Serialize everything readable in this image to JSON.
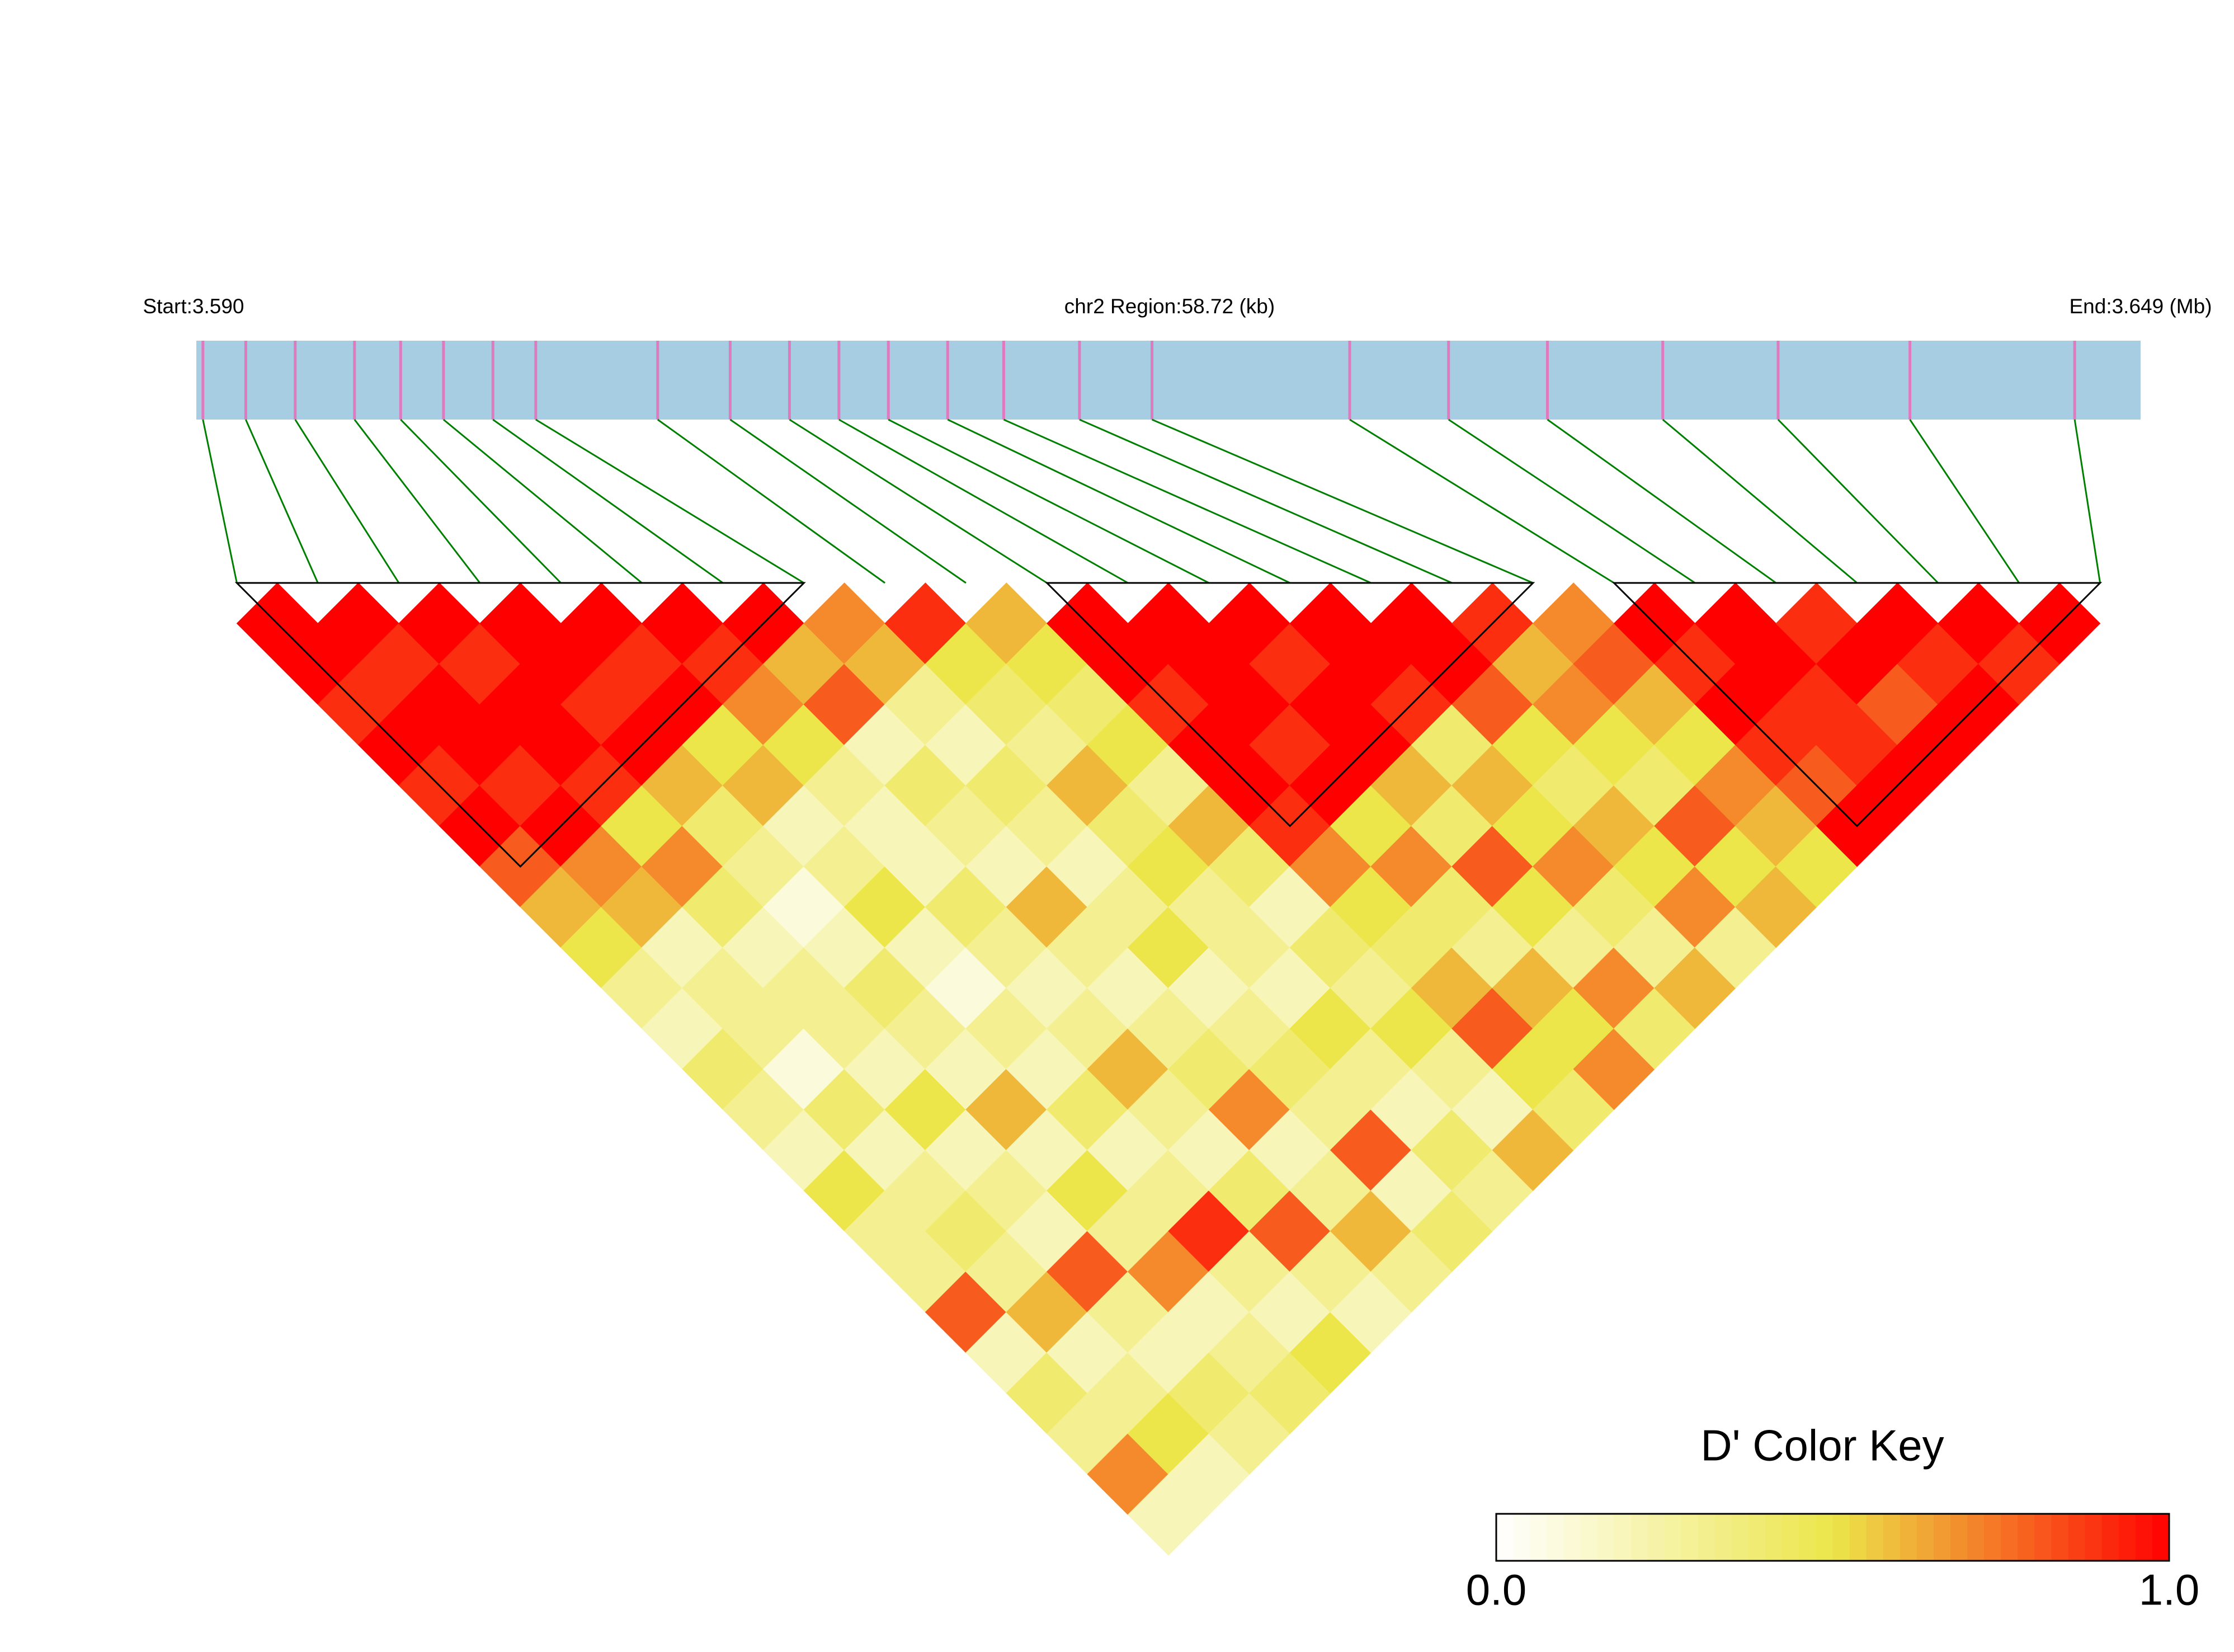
{
  "chart_data": {
    "type": "ld-heatmap",
    "start_label": "Start:3.590",
    "region_label": "chr2 Region:58.72 (kb)",
    "end_label": "End:3.649 (Mb)",
    "legend_title": "D' Color Key",
    "xlim": [
      3.59,
      3.649
    ],
    "positions": [
      3.5902,
      3.5915,
      3.593,
      3.5948,
      3.5962,
      3.5975,
      3.599,
      3.6003,
      3.604,
      3.6062,
      3.608,
      3.6095,
      3.611,
      3.6128,
      3.6145,
      3.6168,
      3.619,
      3.625,
      3.628,
      3.631,
      3.6345,
      3.638,
      3.642,
      3.647
    ],
    "bar_color": "#a6cde2",
    "marker_color": "#e07ac0",
    "link_color": "#008000",
    "colors": [
      "#ffffff",
      "#ece64a",
      "#ff0000"
    ],
    "clim": [
      0,
      1
    ],
    "cticks": [
      {
        "value": 0,
        "label": "0.0"
      },
      {
        "value": 1,
        "label": "1.0"
      }
    ],
    "blocks": [
      [
        0,
        7
      ],
      [
        10,
        16
      ],
      [
        17,
        23
      ]
    ],
    "values": [
      [
        1,
        1,
        0.9,
        1,
        0.9,
        1,
        0.8,
        0.6,
        0.5,
        0.3,
        0.2,
        0.4,
        0.3,
        0.2,
        0.5,
        0.3,
        0.3,
        0.8,
        0.2,
        0.4,
        0.3,
        0.7,
        0.2
      ],
      [
        1,
        0.9,
        1,
        1,
        0.9,
        1,
        0.7,
        0.6,
        0.2,
        0.3,
        0.3,
        0.1,
        0.4,
        0.2,
        0.3,
        0.4,
        0.3,
        0.6,
        0.2,
        0.3,
        0.5,
        0.2
      ],
      [
        1,
        0.9,
        1,
        1,
        0.9,
        0.5,
        0.7,
        0.4,
        0.2,
        0.3,
        0.3,
        0.2,
        0.5,
        0.2,
        0.3,
        0.2,
        0.8,
        0.3,
        0.2,
        0.4,
        0.3
      ],
      [
        1,
        1,
        0.9,
        1,
        0.6,
        0.4,
        0.3,
        0.1,
        0.2,
        0.4,
        0.3,
        0.2,
        0.6,
        0.2,
        0.5,
        0.3,
        0.7,
        0.2,
        0.3,
        0.4
      ],
      [
        1,
        0.9,
        1,
        0.5,
        0.6,
        0.2,
        0.3,
        0.5,
        0.2,
        0.1,
        0.3,
        0.2,
        0.4,
        0.2,
        0.3,
        0.9,
        0.3,
        0.2,
        0.5
      ],
      [
        1,
        0.9,
        0.7,
        0.5,
        0.3,
        0.2,
        0.2,
        0.4,
        0.3,
        0.2,
        0.3,
        0.6,
        0.3,
        0.2,
        0.4,
        0.8,
        0.3,
        0.2
      ],
      [
        1,
        0.6,
        0.8,
        0.2,
        0.4,
        0.3,
        0.2,
        0.6,
        0.3,
        0.2,
        0.3,
        0.4,
        0.7,
        0.2,
        0.3,
        0.6,
        0.3
      ],
      [
        0.7,
        0.6,
        0.3,
        0.2,
        0.4,
        0.3,
        0.2,
        0.3,
        0.5,
        0.2,
        0.3,
        0.4,
        0.3,
        0.8,
        0.2,
        0.4
      ],
      [
        0.9,
        0.5,
        0.4,
        0.3,
        0.6,
        0.4,
        0.5,
        0.3,
        0.3,
        0.2,
        0.5,
        0.3,
        0.2,
        0.4,
        0.3
      ],
      [
        0.6,
        0.5,
        0.4,
        0.5,
        0.3,
        0.6,
        0.4,
        0.2,
        0.4,
        0.3,
        0.5,
        0.3,
        0.2,
        0.6
      ],
      [
        1,
        1,
        0.9,
        1,
        1,
        0.9,
        0.7,
        0.5,
        0.4,
        0.6,
        0.8,
        0.5,
        0.4
      ],
      [
        1,
        1,
        1,
        0.9,
        1,
        0.5,
        0.7,
        0.4,
        0.3,
        0.6,
        0.5,
        0.7
      ],
      [
        1,
        0.9,
        1,
        1,
        0.6,
        0.4,
        0.8,
        0.5,
        0.3,
        0.7,
        0.4
      ],
      [
        1,
        1,
        0.9,
        0.4,
        0.6,
        0.5,
        0.7,
        0.4,
        0.3,
        0.6
      ],
      [
        1,
        1,
        0.8,
        0.5,
        0.4,
        0.6,
        0.5,
        0.7,
        0.3
      ],
      [
        0.9,
        0.6,
        0.7,
        0.5,
        0.4,
        0.8,
        0.5,
        0.6
      ],
      [
        0.7,
        0.8,
        0.6,
        0.5,
        0.7,
        0.6,
        0.5
      ],
      [
        1,
        0.9,
        1,
        0.9,
        0.8,
        1
      ],
      [
        1,
        1,
        0.9,
        0.9,
        1
      ],
      [
        0.9,
        1,
        0.8,
        1
      ],
      [
        1,
        0.9,
        1
      ],
      [
        1,
        0.9
      ],
      [
        1
      ]
    ]
  }
}
